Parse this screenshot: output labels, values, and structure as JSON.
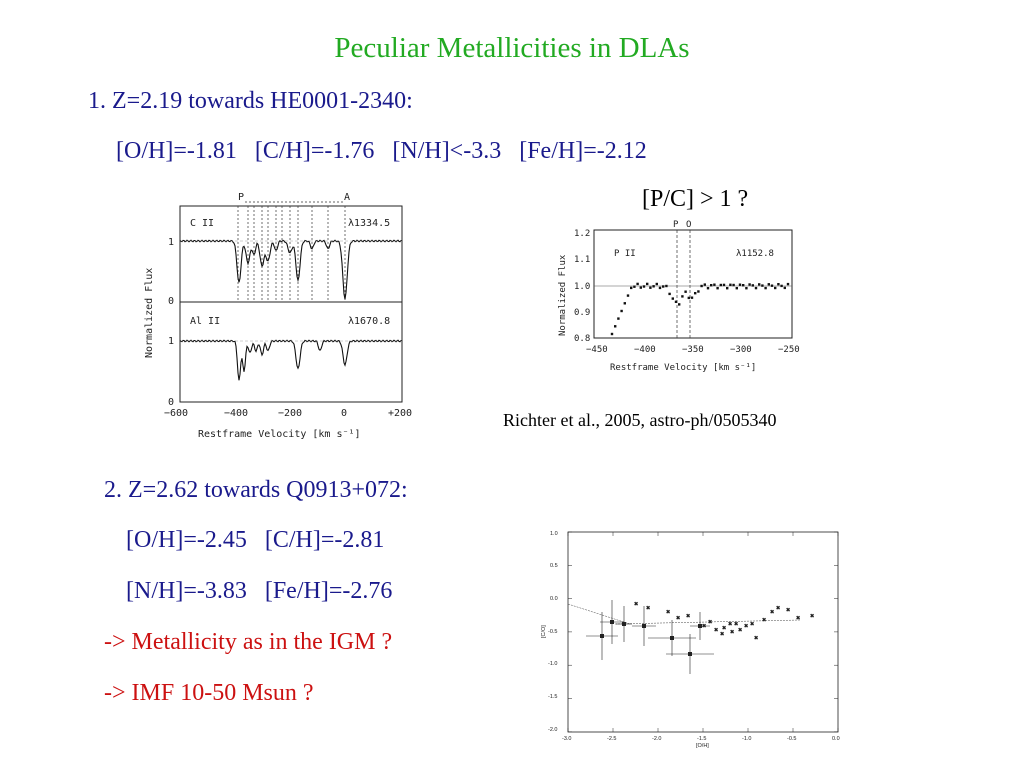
{
  "slide": {
    "title": "Peculiar Metallicities in DLAs",
    "item1_heading": "1. Z=2.19 towards HE0001-2340:",
    "item1_abundances": "[O/H]=-1.81   [C/H]=-1.76   [N/H]<-3.3   [Fe/H]=-2.12",
    "pc_question": "[P/C] > 1 ?",
    "citation": "Richter et al., 2005, astro-ph/0505340",
    "item2_heading": "2. Z=2.62 towards Q0913+072:",
    "item2_line1": "[O/H]=-2.45   [C/H]=-2.81",
    "item2_line2": "[N/H]=-3.83   [Fe/H]=-2.76",
    "bullet1": "-> Metallicity as in the IGM ?",
    "bullet2": "-> IMF 10-50 Msun ?",
    "colors": {
      "title": "#22aa22",
      "text": "#1a1a8c",
      "bullets": "#cc1111"
    }
  },
  "figure1": {
    "ylabel": "Normalized  Flux",
    "xlabel": "Restframe  Velocity  [km  s⁻¹]",
    "top_label_p": "P",
    "top_label_a": "A",
    "panel1": {
      "ion": "C  II",
      "wavelength": "λ1334.5",
      "yticks": [
        "1",
        "0"
      ]
    },
    "panel2": {
      "ion": "Al  II",
      "wavelength": "λ1670.8",
      "yticks": [
        "1",
        "0"
      ]
    },
    "xticks": [
      "−600",
      "−400",
      "−200",
      "0",
      "+200"
    ]
  },
  "figure2": {
    "ylabel": "Normalized  Flux",
    "xlabel": "Restframe  Velocity  [km  s⁻¹]",
    "top_labels": [
      "P",
      "O"
    ],
    "ion": "P  II",
    "wavelength": "λ1152.8",
    "yticks": [
      "1.2",
      "1.1",
      "1.0",
      "0.9",
      "0.8"
    ],
    "xticks": [
      "−450",
      "−400",
      "−350",
      "−300",
      "−250"
    ]
  },
  "figure3": {
    "xlabel": "[O/H]",
    "ylabel": "[C/O]",
    "yticks": [
      "1.0",
      "0.5",
      "0.0",
      "-0.5",
      "-1.0",
      "-1.5",
      "-2.0"
    ],
    "xticks": [
      "-3.0",
      "-2.5",
      "-2.0",
      "-1.5",
      "-1.0",
      "-0.5",
      "0.0"
    ]
  }
}
